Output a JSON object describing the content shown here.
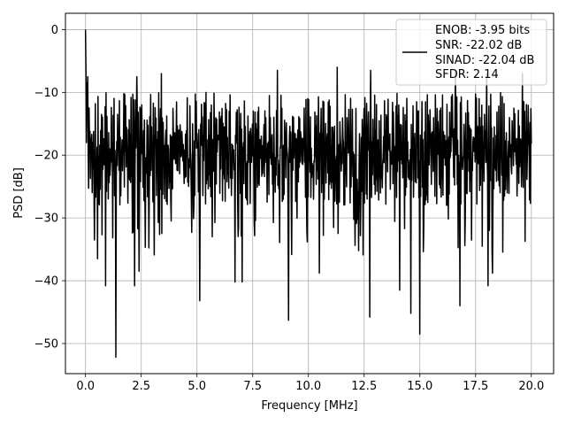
{
  "chart_data": {
    "type": "line",
    "title": "",
    "xlabel": "Frequency [MHz]",
    "ylabel": "PSD [dB]",
    "xlim": [
      -0.9,
      21.0
    ],
    "ylim": [
      -54.8,
      2.6
    ],
    "x_ticks": [
      0.0,
      2.5,
      5.0,
      7.5,
      10.0,
      12.5,
      15.0,
      17.5,
      20.0
    ],
    "x_tick_labels": [
      "0.0",
      "2.5",
      "5.0",
      "7.5",
      "10.0",
      "12.5",
      "15.0",
      "17.5",
      "20.0"
    ],
    "y_ticks": [
      0,
      -10,
      -20,
      -30,
      -40,
      -50
    ],
    "y_tick_labels": [
      "0",
      "−10",
      "−20",
      "−30",
      "−40",
      "−50"
    ],
    "grid": true,
    "legend_position": "top-right",
    "line_color": "#000000",
    "series": [
      {
        "name": "ENOB: -3.95 bits\nSNR: -22.02 dB\nSINAD: -22.04 dB\nSFDR: 2.14",
        "legend_lines": [
          "ENOB: -3.95 bits",
          "SNR: -22.02 dB",
          "SINAD: -22.04 dB",
          "SFDR: 2.14"
        ],
        "x_start": 0.0,
        "x_end": 20.0,
        "num_points": 1000,
        "peak": {
          "x": 0.0,
          "y": 0.0
        },
        "dips": [
          {
            "x": 0.4,
            "y": -33.5
          },
          {
            "x": 0.55,
            "y": -36.5
          },
          {
            "x": 0.9,
            "y": -40.8
          },
          {
            "x": 1.36,
            "y": -52.2
          },
          {
            "x": 2.2,
            "y": -40.8
          },
          {
            "x": 2.4,
            "y": -38.5
          },
          {
            "x": 5.12,
            "y": -43.2
          },
          {
            "x": 6.7,
            "y": -40.2
          },
          {
            "x": 7.03,
            "y": -40.2
          },
          {
            "x": 9.1,
            "y": -46.3
          },
          {
            "x": 10.5,
            "y": -38.8
          },
          {
            "x": 12.75,
            "y": -45.8
          },
          {
            "x": 14.1,
            "y": -41.5
          },
          {
            "x": 14.6,
            "y": -45.2
          },
          {
            "x": 15.0,
            "y": -48.5
          },
          {
            "x": 16.8,
            "y": -44.0
          },
          {
            "x": 18.05,
            "y": -40.8
          },
          {
            "x": 18.25,
            "y": -38.8
          }
        ],
        "spikes": [
          {
            "x": 0.1,
            "y": -7.5
          },
          {
            "x": 2.3,
            "y": -7.5
          },
          {
            "x": 3.4,
            "y": -7.0
          },
          {
            "x": 8.6,
            "y": -6.5
          },
          {
            "x": 11.3,
            "y": -6.0
          },
          {
            "x": 12.8,
            "y": -6.5
          },
          {
            "x": 16.6,
            "y": -6.5
          },
          {
            "x": 18.0,
            "y": -7.0
          },
          {
            "x": 19.6,
            "y": -7.0
          }
        ],
        "noise_floor_range": [
          -28,
          -10
        ]
      }
    ]
  }
}
